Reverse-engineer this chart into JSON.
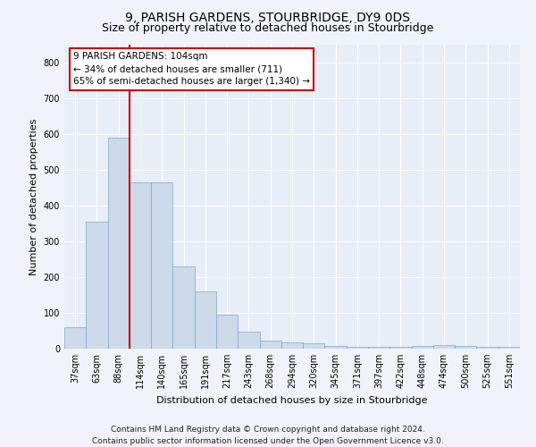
{
  "title": "9, PARISH GARDENS, STOURBRIDGE, DY9 0DS",
  "subtitle": "Size of property relative to detached houses in Stourbridge",
  "xlabel": "Distribution of detached houses by size in Stourbridge",
  "ylabel": "Number of detached properties",
  "categories": [
    "37sqm",
    "63sqm",
    "88sqm",
    "114sqm",
    "140sqm",
    "165sqm",
    "191sqm",
    "217sqm",
    "243sqm",
    "268sqm",
    "294sqm",
    "320sqm",
    "345sqm",
    "371sqm",
    "397sqm",
    "422sqm",
    "448sqm",
    "474sqm",
    "500sqm",
    "525sqm",
    "551sqm"
  ],
  "values": [
    60,
    355,
    590,
    465,
    465,
    230,
    160,
    95,
    48,
    22,
    18,
    14,
    8,
    5,
    5,
    5,
    7,
    10,
    8,
    5,
    5
  ],
  "bar_color": "#cddaea",
  "bar_edge_color": "#7aaac8",
  "highlight_index": 3,
  "highlight_line_color": "#cc0000",
  "ylim": [
    0,
    850
  ],
  "yticks": [
    0,
    100,
    200,
    300,
    400,
    500,
    600,
    700,
    800
  ],
  "annotation_text": "9 PARISH GARDENS: 104sqm\n← 34% of detached houses are smaller (711)\n65% of semi-detached houses are larger (1,340) →",
  "annotation_box_facecolor": "#ffffff",
  "annotation_box_edgecolor": "#cc0000",
  "footer_line1": "Contains HM Land Registry data © Crown copyright and database right 2024.",
  "footer_line2": "Contains public sector information licensed under the Open Government Licence v3.0.",
  "background_color": "#f0f4fa",
  "plot_bg_color": "#e8eef8",
  "grid_color": "#ffffff",
  "title_fontsize": 10,
  "subtitle_fontsize": 9,
  "ylabel_fontsize": 8,
  "xlabel_fontsize": 8,
  "tick_fontsize": 7,
  "annot_fontsize": 7.5,
  "footer_fontsize": 6.5
}
